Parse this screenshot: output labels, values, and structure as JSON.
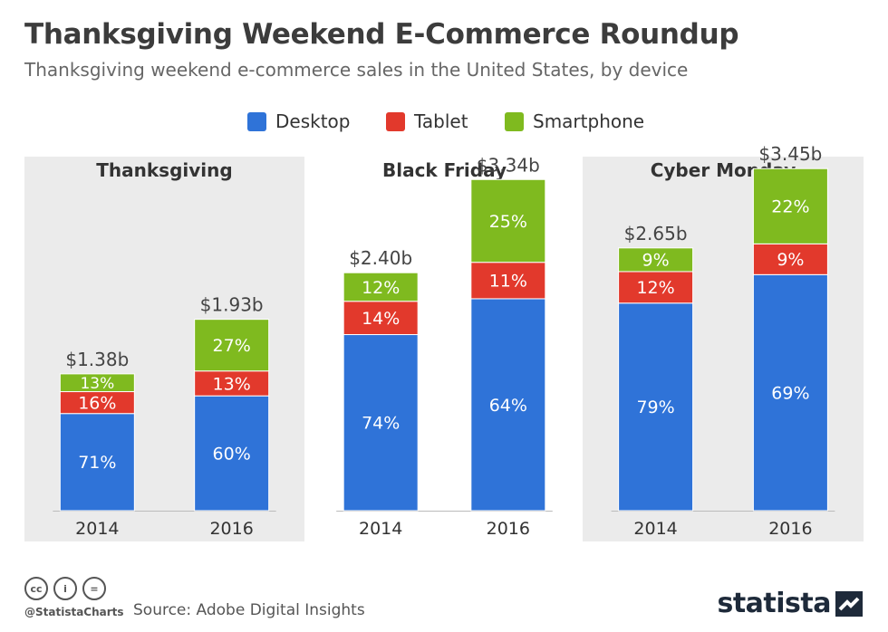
{
  "title": "Thanksgiving Weekend E-Commerce Roundup",
  "subtitle": "Thanksgiving weekend e-commerce sales in the United States, by device",
  "legend": [
    {
      "label": "Desktop",
      "color": "#2f73d8"
    },
    {
      "label": "Tablet",
      "color": "#e2392c"
    },
    {
      "label": "Smartphone",
      "color": "#7fba1f"
    }
  ],
  "chart_data": {
    "type": "bar",
    "stacked": true,
    "unit": "share of sales (%)",
    "series_names": [
      "Desktop",
      "Tablet",
      "Smartphone"
    ],
    "colors": {
      "Desktop": "#2f73d8",
      "Tablet": "#e2392c",
      "Smartphone": "#7fba1f"
    },
    "panels": [
      {
        "title": "Thanksgiving",
        "bars": [
          {
            "year": "2014",
            "total": 1.38,
            "total_label": "$1.38b",
            "shares": {
              "Desktop": 71,
              "Tablet": 16,
              "Smartphone": 13
            }
          },
          {
            "year": "2016",
            "total": 1.93,
            "total_label": "$1.93b",
            "shares": {
              "Desktop": 60,
              "Tablet": 13,
              "Smartphone": 27
            }
          }
        ]
      },
      {
        "title": "Black Friday",
        "bars": [
          {
            "year": "2014",
            "total": 2.4,
            "total_label": "$2.40b",
            "shares": {
              "Desktop": 74,
              "Tablet": 14,
              "Smartphone": 12
            }
          },
          {
            "year": "2016",
            "total": 3.34,
            "total_label": "$3.34b",
            "shares": {
              "Desktop": 64,
              "Tablet": 11,
              "Smartphone": 25
            }
          }
        ]
      },
      {
        "title": "Cyber Monday",
        "bars": [
          {
            "year": "2014",
            "total": 2.65,
            "total_label": "$2.65b",
            "shares": {
              "Desktop": 79,
              "Tablet": 12,
              "Smartphone": 9
            }
          },
          {
            "year": "2016",
            "total": 3.45,
            "total_label": "$3.45b",
            "shares": {
              "Desktop": 69,
              "Tablet": 9,
              "Smartphone": 22
            }
          }
        ]
      }
    ]
  },
  "footer": {
    "handle": "@StatistaCharts",
    "source": "Source: Adobe Digital Insights",
    "brand": "statista",
    "license_icons": [
      "cc-icon",
      "attribution-icon",
      "no-derivatives-icon"
    ],
    "license_glyphs": [
      "cc",
      "i",
      "="
    ]
  }
}
